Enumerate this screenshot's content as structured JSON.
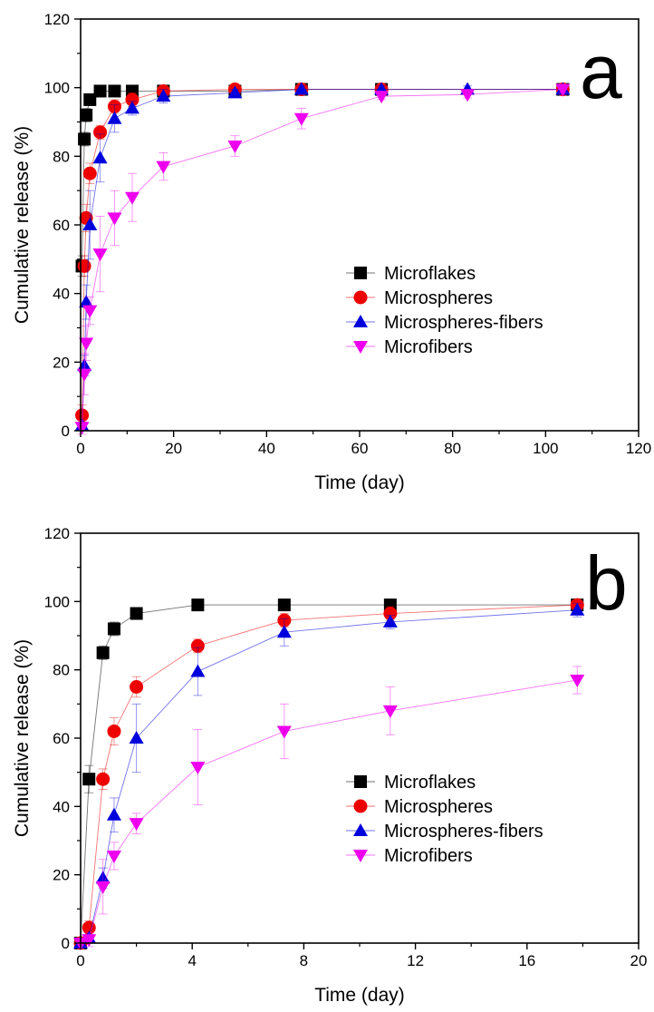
{
  "chart_data": [
    {
      "type": "scatter",
      "panel_label": "a",
      "xlabel": "Time (day)",
      "ylabel": "Cumulative release (%)",
      "xlim": [
        0,
        120
      ],
      "ylim": [
        0,
        120
      ],
      "xticks": [
        0,
        20,
        40,
        60,
        80,
        100,
        120
      ],
      "yticks": [
        0,
        20,
        40,
        60,
        80,
        100,
        120
      ],
      "grid": false,
      "legend_position": "center-right",
      "series": [
        {
          "name": "Microflakes",
          "color": "#000000",
          "marker": "square",
          "x": [
            0.3,
            0.8,
            1.2,
            2,
            4.2,
            7.3,
            11.1,
            17.8,
            33.2,
            47.5,
            64.7,
            103.7
          ],
          "y": [
            48,
            85,
            92,
            96.5,
            99,
            99,
            99,
            99,
            99,
            99.5,
            99.5,
            99.5
          ],
          "err": [
            3,
            2,
            2,
            1,
            1,
            1,
            1,
            1,
            1,
            1,
            1,
            1
          ]
        },
        {
          "name": "Microspheres",
          "color": "#ee0000",
          "marker": "circle",
          "x": [
            0.3,
            0.8,
            1.2,
            2,
            4.2,
            7.3,
            11.1,
            17.8,
            33.2,
            47.5,
            64.7,
            103.7
          ],
          "y": [
            4.5,
            48,
            62,
            75,
            87,
            94.5,
            96.5,
            99,
            99.5,
            99.5,
            99.5,
            99.5
          ],
          "err": [
            3,
            3,
            4,
            3,
            2,
            2,
            2,
            1,
            1,
            1,
            1,
            1
          ]
        },
        {
          "name": "Microspheres-fibers",
          "color": "#0000dd",
          "marker": "triangle-up",
          "x": [
            0.3,
            0.8,
            1.2,
            2,
            4.2,
            7.3,
            11.1,
            17.8,
            33.2,
            47.5,
            64.7,
            83.2,
            103.7
          ],
          "y": [
            1.5,
            19,
            37.5,
            60,
            79.5,
            91,
            94,
            97.5,
            98.5,
            99.5,
            99.5,
            99.5,
            99.5
          ],
          "err": [
            1,
            3,
            5,
            10,
            7,
            4,
            2,
            2,
            1,
            1,
            1,
            1,
            1
          ]
        },
        {
          "name": "Microfibers",
          "color": "#ee00ee",
          "marker": "triangle-down",
          "x": [
            0.3,
            0.8,
            1.2,
            2,
            4.2,
            7.3,
            11.1,
            17.8,
            33.2,
            47.5,
            64.7,
            83.2,
            103.7
          ],
          "y": [
            1,
            16.5,
            25.5,
            35,
            51.5,
            62,
            68,
            77,
            83,
            91,
            97.5,
            98,
            99.5
          ],
          "err": [
            2,
            6,
            5,
            4,
            11,
            8,
            7,
            4,
            3,
            3,
            1,
            1,
            1
          ]
        }
      ]
    },
    {
      "type": "scatter",
      "panel_label": "b",
      "xlabel": "Time (day)",
      "ylabel": "Cumulative release (%)",
      "xlim": [
        0,
        20
      ],
      "ylim": [
        0,
        120
      ],
      "xticks": [
        0,
        4,
        8,
        12,
        16,
        20
      ],
      "yticks": [
        0,
        20,
        40,
        60,
        80,
        100,
        120
      ],
      "grid": false,
      "legend_position": "center-right",
      "series": [
        {
          "name": "Microflakes",
          "color": "#000000",
          "marker": "square",
          "x": [
            0,
            0.3,
            0.8,
            1.2,
            2,
            4.2,
            7.3,
            11.1,
            17.8
          ],
          "y": [
            0,
            48,
            85,
            92,
            96.5,
            99,
            99,
            99,
            99
          ],
          "err": [
            0,
            4,
            2,
            2,
            1,
            1,
            1,
            1,
            1
          ]
        },
        {
          "name": "Microspheres",
          "color": "#ee0000",
          "marker": "circle",
          "x": [
            0,
            0.3,
            0.8,
            1.2,
            2,
            4.2,
            7.3,
            11.1,
            17.8
          ],
          "y": [
            0,
            4.5,
            48,
            62,
            75,
            87,
            94.5,
            96.5,
            99
          ],
          "err": [
            0,
            2,
            3,
            4,
            3,
            2,
            2,
            2,
            1
          ]
        },
        {
          "name": "Microspheres-fibers",
          "color": "#0000dd",
          "marker": "triangle-up",
          "x": [
            0,
            0.3,
            0.8,
            1.2,
            2,
            4.2,
            7.3,
            11.1,
            17.8
          ],
          "y": [
            0,
            1.5,
            19,
            37.5,
            60,
            79.5,
            91,
            94,
            97.5
          ],
          "err": [
            0,
            1,
            3,
            5,
            10,
            7,
            4,
            2,
            2
          ]
        },
        {
          "name": "Microfibers",
          "color": "#ee00ee",
          "marker": "triangle-down",
          "x": [
            0,
            0.3,
            0.8,
            1.2,
            2,
            4.2,
            7.3,
            11.1,
            17.8
          ],
          "y": [
            0,
            1,
            16.5,
            25.5,
            35,
            51.5,
            62,
            68,
            77
          ],
          "err": [
            0,
            2,
            8,
            4,
            3,
            11,
            8,
            7,
            4
          ]
        }
      ]
    }
  ]
}
